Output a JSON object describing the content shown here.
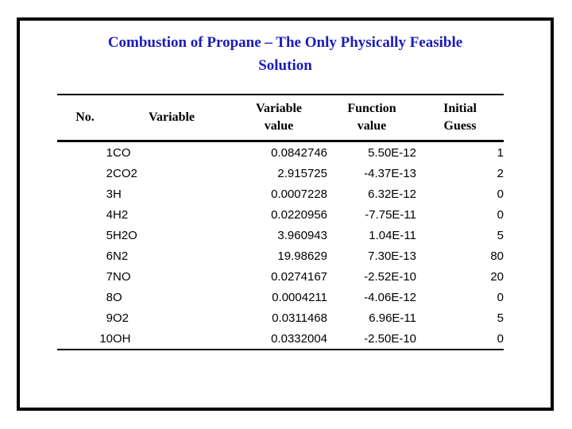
{
  "slide": {
    "title_line1": "Combustion of Propane – The Only Physically Feasible",
    "title_line2": "Solution",
    "title_color": "#1c1cb8",
    "frame_border_color": "#000000"
  },
  "table": {
    "headers": [
      {
        "key": "no",
        "lines": [
          "No."
        ]
      },
      {
        "key": "variable",
        "lines": [
          "Variable"
        ]
      },
      {
        "key": "variable-value",
        "lines": [
          "Variable",
          "value"
        ]
      },
      {
        "key": "function-value",
        "lines": [
          "Function",
          "value"
        ]
      },
      {
        "key": "initial-guess",
        "lines": [
          "Initial",
          "Guess"
        ]
      }
    ],
    "rows": [
      [
        "1",
        "CO",
        "0.0842746",
        "5.50E-12",
        "1"
      ],
      [
        "2",
        "CO2",
        "2.915725",
        "-4.37E-13",
        "2"
      ],
      [
        "3",
        "H",
        "0.0007228",
        "6.32E-12",
        "0"
      ],
      [
        "4",
        "H2",
        "0.0220956",
        "-7.75E-11",
        "0"
      ],
      [
        "5",
        "H2O",
        "3.960943",
        "1.04E-11",
        "5"
      ],
      [
        "6",
        "N2",
        "19.98629",
        "7.30E-13",
        "80"
      ],
      [
        "7",
        "NO",
        "0.0274167",
        "-2.52E-10",
        "20"
      ],
      [
        "8",
        "O",
        "0.0004211",
        "-4.06E-12",
        "0"
      ],
      [
        "9",
        "O2",
        "0.0311468",
        "6.96E-11",
        "5"
      ],
      [
        "10",
        "OH",
        "0.0332004",
        "-2.50E-10",
        "0"
      ]
    ]
  }
}
